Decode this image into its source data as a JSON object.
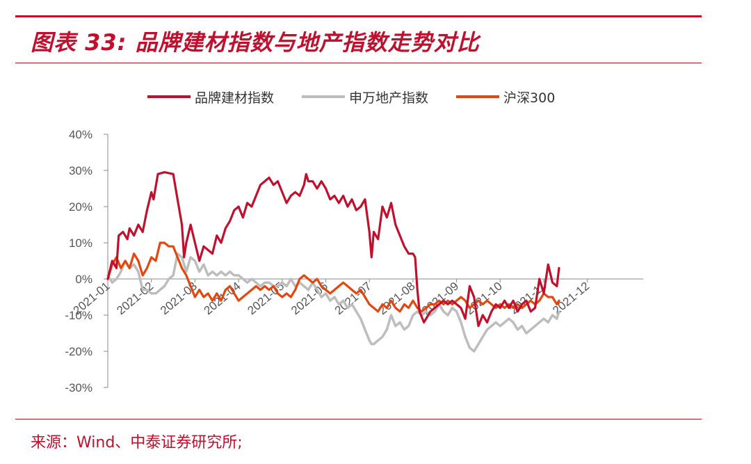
{
  "header": {
    "title": "图表 33: 品牌建材指数与地产指数走势对比"
  },
  "footer": {
    "source": "来源：Wind、中泰证券研究所;"
  },
  "colors": {
    "accent": "#c0102d"
  },
  "chart_data": {
    "type": "line",
    "title": "图表 33: 品牌建材指数与地产指数走势对比",
    "xlabel": "",
    "ylabel": "",
    "ylim": [
      -30,
      40
    ],
    "y_ticks": [
      "40%",
      "30%",
      "20%",
      "10%",
      "0%",
      "-10%",
      "-20%",
      "-30%"
    ],
    "y_tick_values": [
      40,
      30,
      20,
      10,
      0,
      -10,
      -20,
      -30
    ],
    "x_ticks": [
      "2021-01",
      "2021-02",
      "2021-03",
      "2021-04",
      "2021-05",
      "2021-06",
      "2021-07",
      "2021-08",
      "2021-09",
      "2021-10",
      "2021-11",
      "2021-12"
    ],
    "x_range": [
      0,
      12
    ],
    "grid": false,
    "legend": "top",
    "series": [
      {
        "name": "品牌建材指数",
        "color": "#c0102d",
        "points": [
          [
            0.0,
            0
          ],
          [
            0.1,
            5
          ],
          [
            0.2,
            3
          ],
          [
            0.25,
            12
          ],
          [
            0.35,
            13
          ],
          [
            0.45,
            11
          ],
          [
            0.5,
            14
          ],
          [
            0.6,
            12
          ],
          [
            0.7,
            15
          ],
          [
            0.8,
            13
          ],
          [
            0.9,
            19
          ],
          [
            1.0,
            24
          ],
          [
            1.05,
            22
          ],
          [
            1.15,
            29
          ],
          [
            1.3,
            29.5
          ],
          [
            1.5,
            29
          ],
          [
            1.6,
            22
          ],
          [
            1.7,
            15
          ],
          [
            1.75,
            6
          ],
          [
            1.8,
            10
          ],
          [
            1.9,
            15
          ],
          [
            2.0,
            10
          ],
          [
            2.1,
            5
          ],
          [
            2.2,
            9
          ],
          [
            2.3,
            8
          ],
          [
            2.4,
            7
          ],
          [
            2.5,
            12
          ],
          [
            2.6,
            10
          ],
          [
            2.7,
            14
          ],
          [
            2.8,
            16
          ],
          [
            2.9,
            19
          ],
          [
            3.0,
            20
          ],
          [
            3.1,
            17
          ],
          [
            3.2,
            21
          ],
          [
            3.3,
            20
          ],
          [
            3.4,
            23
          ],
          [
            3.5,
            26
          ],
          [
            3.6,
            27
          ],
          [
            3.7,
            28
          ],
          [
            3.8,
            26
          ],
          [
            3.9,
            27
          ],
          [
            4.0,
            24
          ],
          [
            4.1,
            21
          ],
          [
            4.2,
            23
          ],
          [
            4.3,
            24
          ],
          [
            4.4,
            23
          ],
          [
            4.5,
            26
          ],
          [
            4.55,
            29
          ],
          [
            4.6,
            27
          ],
          [
            4.7,
            27
          ],
          [
            4.8,
            25
          ],
          [
            4.9,
            27
          ],
          [
            5.0,
            25
          ],
          [
            5.1,
            22
          ],
          [
            5.2,
            23
          ],
          [
            5.3,
            21
          ],
          [
            5.4,
            23
          ],
          [
            5.5,
            20
          ],
          [
            5.6,
            22
          ],
          [
            5.7,
            19
          ],
          [
            5.8,
            20
          ],
          [
            5.9,
            22
          ],
          [
            6.0,
            13
          ],
          [
            6.05,
            6
          ],
          [
            6.1,
            13
          ],
          [
            6.2,
            11
          ],
          [
            6.3,
            20
          ],
          [
            6.4,
            17
          ],
          [
            6.5,
            21
          ],
          [
            6.6,
            15
          ],
          [
            6.7,
            12
          ],
          [
            6.8,
            9
          ],
          [
            6.9,
            7
          ],
          [
            7.0,
            7
          ],
          [
            7.05,
            6
          ],
          [
            7.1,
            -3
          ],
          [
            7.15,
            -9
          ],
          [
            7.25,
            -12
          ],
          [
            7.4,
            -9
          ],
          [
            7.5,
            -8
          ],
          [
            7.6,
            -7
          ],
          [
            7.7,
            -6
          ],
          [
            7.8,
            -7
          ],
          [
            7.9,
            -6
          ],
          [
            8.0,
            -7
          ],
          [
            8.1,
            -8
          ],
          [
            8.2,
            -11
          ],
          [
            8.3,
            -2
          ],
          [
            8.4,
            -5
          ],
          [
            8.5,
            -13
          ],
          [
            8.6,
            -10
          ],
          [
            8.7,
            -12
          ],
          [
            8.8,
            -9
          ],
          [
            8.9,
            -7
          ],
          [
            9.0,
            -8
          ],
          [
            9.1,
            -6
          ],
          [
            9.2,
            -8
          ],
          [
            9.3,
            -6
          ],
          [
            9.4,
            -9
          ],
          [
            9.5,
            -7
          ],
          [
            9.6,
            -6
          ],
          [
            9.7,
            -9
          ],
          [
            9.8,
            -8
          ],
          [
            9.9,
            0
          ],
          [
            10.0,
            -4
          ],
          [
            10.05,
            0
          ],
          [
            10.1,
            4
          ],
          [
            10.2,
            -1
          ],
          [
            10.3,
            -2
          ],
          [
            10.35,
            3
          ]
        ]
      },
      {
        "name": "申万地产指数",
        "color": "#bdbdbd",
        "points": [
          [
            0.0,
            1
          ],
          [
            0.1,
            -1
          ],
          [
            0.2,
            0
          ],
          [
            0.3,
            2
          ],
          [
            0.4,
            5
          ],
          [
            0.5,
            3
          ],
          [
            0.6,
            4
          ],
          [
            0.7,
            2
          ],
          [
            0.8,
            -3
          ],
          [
            0.9,
            -3
          ],
          [
            1.0,
            -4
          ],
          [
            1.1,
            -4
          ],
          [
            1.2,
            -3
          ],
          [
            1.3,
            -2
          ],
          [
            1.4,
            0
          ],
          [
            1.5,
            1
          ],
          [
            1.6,
            7
          ],
          [
            1.7,
            6
          ],
          [
            1.8,
            2
          ],
          [
            1.9,
            6
          ],
          [
            2.0,
            5
          ],
          [
            2.1,
            2
          ],
          [
            2.2,
            4
          ],
          [
            2.3,
            1
          ],
          [
            2.4,
            2
          ],
          [
            2.5,
            1
          ],
          [
            2.6,
            2
          ],
          [
            2.7,
            1
          ],
          [
            2.8,
            2
          ],
          [
            2.9,
            1
          ],
          [
            3.0,
            1
          ],
          [
            3.1,
            0
          ],
          [
            3.2,
            -1
          ],
          [
            3.3,
            0
          ],
          [
            3.4,
            -1
          ],
          [
            3.5,
            -2
          ],
          [
            3.6,
            -1
          ],
          [
            3.7,
            -1
          ],
          [
            3.8,
            -2
          ],
          [
            3.9,
            -2
          ],
          [
            4.0,
            -1
          ],
          [
            4.1,
            -2
          ],
          [
            4.2,
            0
          ],
          [
            4.3,
            -2
          ],
          [
            4.4,
            -1
          ],
          [
            4.5,
            -2
          ],
          [
            4.6,
            -3
          ],
          [
            4.7,
            -1
          ],
          [
            4.8,
            -3
          ],
          [
            4.9,
            -5
          ],
          [
            5.0,
            -4
          ],
          [
            5.1,
            -6
          ],
          [
            5.2,
            -5
          ],
          [
            5.3,
            -7
          ],
          [
            5.4,
            -6
          ],
          [
            5.5,
            -8
          ],
          [
            5.6,
            -7
          ],
          [
            5.7,
            -9
          ],
          [
            5.8,
            -11
          ],
          [
            5.9,
            -14
          ],
          [
            6.0,
            -17
          ],
          [
            6.05,
            -18
          ],
          [
            6.1,
            -18
          ],
          [
            6.2,
            -17
          ],
          [
            6.3,
            -16
          ],
          [
            6.4,
            -14
          ],
          [
            6.5,
            -10
          ],
          [
            6.6,
            -13
          ],
          [
            6.7,
            -12
          ],
          [
            6.8,
            -14
          ],
          [
            6.9,
            -13
          ],
          [
            7.0,
            -10
          ],
          [
            7.1,
            -9
          ],
          [
            7.2,
            -10
          ],
          [
            7.3,
            -9
          ],
          [
            7.4,
            -10
          ],
          [
            7.5,
            -9
          ],
          [
            7.6,
            -7
          ],
          [
            7.7,
            -9
          ],
          [
            7.8,
            -10
          ],
          [
            7.9,
            -8
          ],
          [
            8.0,
            -9
          ],
          [
            8.1,
            -12
          ],
          [
            8.2,
            -16
          ],
          [
            8.3,
            -19
          ],
          [
            8.4,
            -20
          ],
          [
            8.5,
            -18
          ],
          [
            8.6,
            -16
          ],
          [
            8.7,
            -14
          ],
          [
            8.8,
            -13
          ],
          [
            8.9,
            -12
          ],
          [
            9.0,
            -13
          ],
          [
            9.1,
            -12
          ],
          [
            9.2,
            -11
          ],
          [
            9.3,
            -12
          ],
          [
            9.4,
            -14
          ],
          [
            9.5,
            -13
          ],
          [
            9.6,
            -15
          ],
          [
            9.7,
            -14
          ],
          [
            9.8,
            -13
          ],
          [
            9.9,
            -12
          ],
          [
            10.0,
            -11
          ],
          [
            10.1,
            -12
          ],
          [
            10.2,
            -10
          ],
          [
            10.3,
            -11
          ],
          [
            10.35,
            -9
          ]
        ]
      },
      {
        "name": "沪深300",
        "color": "#e4460d",
        "points": [
          [
            0.0,
            0
          ],
          [
            0.1,
            4
          ],
          [
            0.2,
            6
          ],
          [
            0.3,
            3
          ],
          [
            0.4,
            5
          ],
          [
            0.5,
            3
          ],
          [
            0.6,
            7
          ],
          [
            0.7,
            5
          ],
          [
            0.8,
            1
          ],
          [
            0.9,
            3
          ],
          [
            1.0,
            6
          ],
          [
            1.1,
            5
          ],
          [
            1.2,
            10
          ],
          [
            1.3,
            10
          ],
          [
            1.4,
            9
          ],
          [
            1.5,
            9
          ],
          [
            1.6,
            6
          ],
          [
            1.7,
            3
          ],
          [
            1.8,
            1
          ],
          [
            1.9,
            -2
          ],
          [
            2.0,
            -5
          ],
          [
            2.1,
            -3
          ],
          [
            2.2,
            -5
          ],
          [
            2.3,
            -4
          ],
          [
            2.4,
            -6
          ],
          [
            2.5,
            -4
          ],
          [
            2.6,
            -6
          ],
          [
            2.7,
            -3
          ],
          [
            2.8,
            -2
          ],
          [
            2.9,
            -4
          ],
          [
            3.0,
            -6
          ],
          [
            3.1,
            -5
          ],
          [
            3.2,
            -4
          ],
          [
            3.3,
            -3
          ],
          [
            3.4,
            -2
          ],
          [
            3.5,
            -3
          ],
          [
            3.6,
            -2
          ],
          [
            3.7,
            -3
          ],
          [
            3.8,
            -2
          ],
          [
            3.9,
            -4
          ],
          [
            4.0,
            -5
          ],
          [
            4.1,
            -4
          ],
          [
            4.2,
            -5
          ],
          [
            4.3,
            -3
          ],
          [
            4.4,
            0
          ],
          [
            4.5,
            1
          ],
          [
            4.6,
            0
          ],
          [
            4.7,
            -1
          ],
          [
            4.8,
            0
          ],
          [
            4.9,
            -2
          ],
          [
            5.0,
            -3
          ],
          [
            5.1,
            -4
          ],
          [
            5.2,
            -3
          ],
          [
            5.3,
            -2
          ],
          [
            5.4,
            -1
          ],
          [
            5.5,
            -2
          ],
          [
            5.6,
            -3
          ],
          [
            5.7,
            -4
          ],
          [
            5.8,
            -3
          ],
          [
            5.9,
            -5
          ],
          [
            6.0,
            -7
          ],
          [
            6.1,
            -8
          ],
          [
            6.2,
            -9
          ],
          [
            6.3,
            -7
          ],
          [
            6.4,
            -8
          ],
          [
            6.5,
            -6
          ],
          [
            6.6,
            -8
          ],
          [
            6.7,
            -9
          ],
          [
            6.8,
            -7
          ],
          [
            6.9,
            -8
          ],
          [
            7.0,
            -6
          ],
          [
            7.1,
            -8
          ],
          [
            7.2,
            -9
          ],
          [
            7.3,
            -8
          ],
          [
            7.4,
            -7
          ],
          [
            7.5,
            -7
          ],
          [
            7.6,
            -6
          ],
          [
            7.7,
            -7
          ],
          [
            7.8,
            -6
          ],
          [
            7.9,
            -7
          ],
          [
            8.0,
            -6
          ],
          [
            8.1,
            -5
          ],
          [
            8.2,
            -6
          ],
          [
            8.3,
            -8
          ],
          [
            8.4,
            -7
          ],
          [
            8.5,
            -6
          ],
          [
            8.6,
            -7
          ],
          [
            8.7,
            -6
          ],
          [
            8.8,
            -7
          ],
          [
            8.9,
            -8
          ],
          [
            9.0,
            -7
          ],
          [
            9.1,
            -8
          ],
          [
            9.2,
            -7
          ],
          [
            9.3,
            -8
          ],
          [
            9.4,
            -7
          ],
          [
            9.5,
            -8
          ],
          [
            9.6,
            -7
          ],
          [
            9.7,
            -6
          ],
          [
            9.8,
            -7
          ],
          [
            9.9,
            -6
          ],
          [
            10.0,
            -4
          ],
          [
            10.1,
            -5
          ],
          [
            10.2,
            -5
          ],
          [
            10.3,
            -7
          ],
          [
            10.35,
            -6
          ]
        ]
      }
    ]
  }
}
